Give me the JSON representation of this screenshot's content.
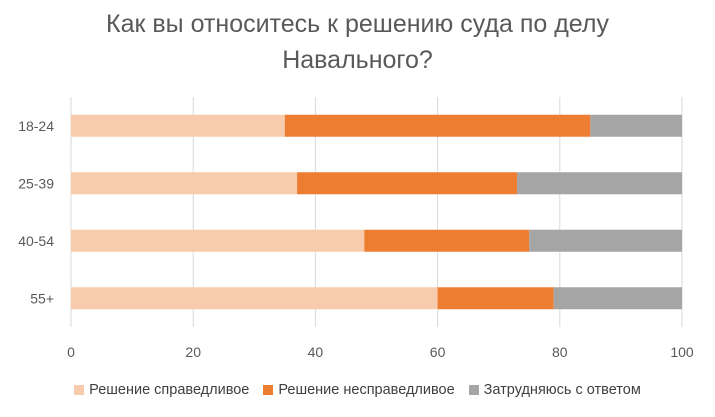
{
  "chart_data": {
    "type": "bar",
    "orientation": "horizontal",
    "stacked": true,
    "title_lines": [
      "Как вы относитесь к решению суда по делу",
      "Навального?"
    ],
    "categories": [
      "18-24",
      "25-39",
      "40-54",
      "55+"
    ],
    "series": [
      {
        "name": "Решение справедливое",
        "color": "#F8CBAD",
        "values": [
          35,
          37,
          48,
          60
        ]
      },
      {
        "name": "Решение несправедливое",
        "color": "#ED7D31",
        "values": [
          50,
          36,
          27,
          19
        ]
      },
      {
        "name": "Затрудняюсь с ответом",
        "color": "#A5A5A5",
        "values": [
          15,
          27,
          25,
          21
        ]
      }
    ],
    "xlim": [
      0,
      100
    ],
    "xticks": [
      0,
      20,
      40,
      60,
      80,
      100
    ],
    "grid": "vertical",
    "legend": "bottom"
  }
}
